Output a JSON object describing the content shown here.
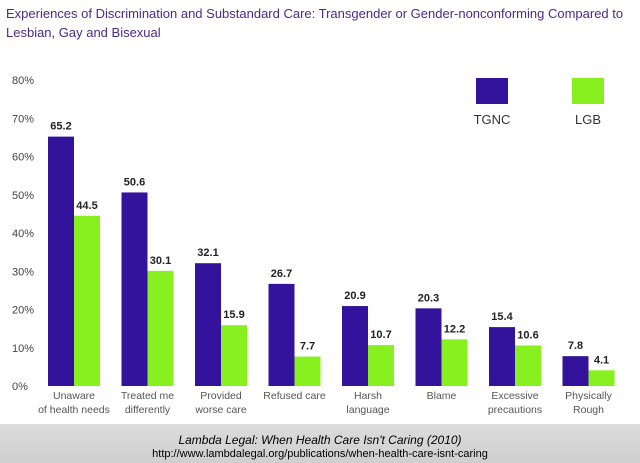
{
  "chart_data": {
    "type": "bar",
    "title": "Experiences of Discrimination and Substandard Care: Transgender or Gender-nonconforming Compared to Lesbian, Gay and Bisexual",
    "categories": [
      [
        "Unaware",
        "of health needs"
      ],
      [
        "Treated me",
        "differently"
      ],
      [
        "Provided",
        "worse care"
      ],
      [
        "Refused care"
      ],
      [
        "Harsh",
        "language"
      ],
      [
        "Blame"
      ],
      [
        "Excessive",
        "precautions"
      ],
      [
        "Physically",
        "Rough"
      ]
    ],
    "series": [
      {
        "name": "TGNC",
        "color": "#33139c",
        "values": [
          65.2,
          50.6,
          32.1,
          26.7,
          20.9,
          20.3,
          15.4,
          7.8
        ]
      },
      {
        "name": "LGB",
        "color": "#88f01f",
        "values": [
          44.5,
          30.1,
          15.9,
          7.7,
          10.7,
          12.2,
          10.6,
          4.1
        ]
      }
    ],
    "yticks": [
      "0%",
      "10%",
      "20%",
      "30%",
      "40%",
      "50%",
      "60%",
      "70%",
      "80%"
    ],
    "ylim": [
      0,
      80
    ],
    "grid": false,
    "legend": "top-right"
  },
  "source": {
    "citation": "Lambda Legal: When Health Care Isn't Caring (2010)",
    "url": "http://www.lambdalegal.org/publications/when-health-care-isnt-caring"
  }
}
